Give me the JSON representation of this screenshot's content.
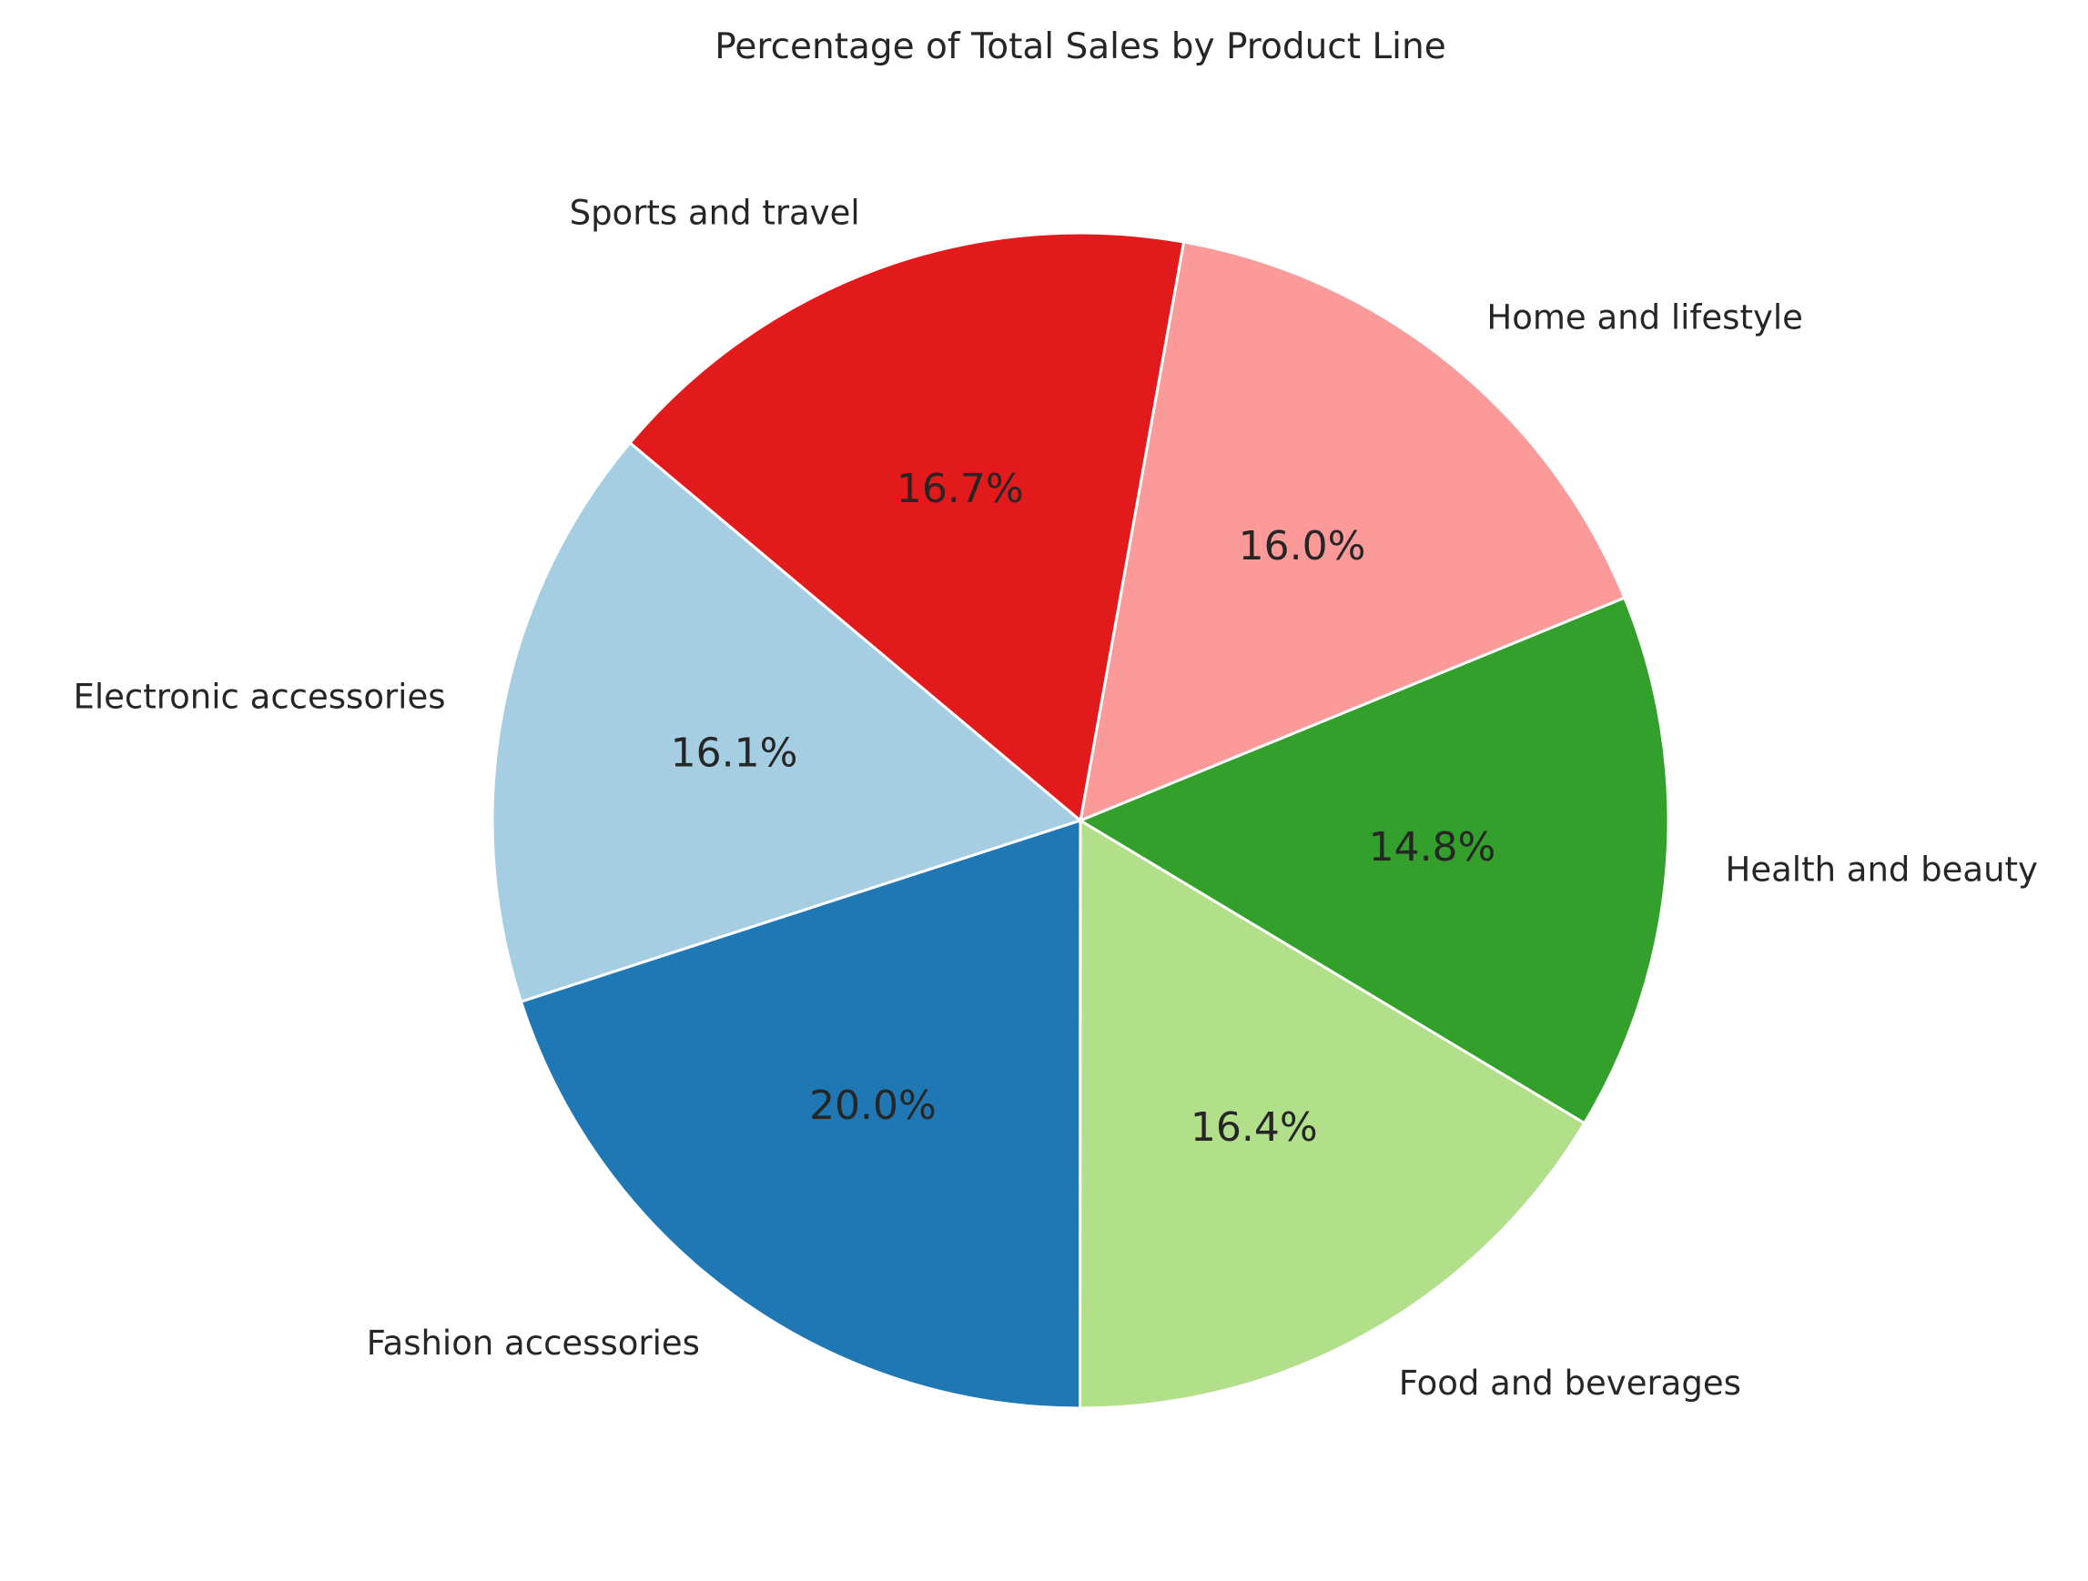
{
  "chart_data": {
    "type": "pie",
    "title": "Percentage of Total Sales by Product Line",
    "slices": [
      {
        "label": "Electronic accessories",
        "value": 16.1,
        "display": "16.1%",
        "color": "#a6cee3"
      },
      {
        "label": "Fashion accessories",
        "value": 20.0,
        "display": "20.0%",
        "color": "#1f78b4"
      },
      {
        "label": "Food and beverages",
        "value": 16.4,
        "display": "16.4%",
        "color": "#b2df8a"
      },
      {
        "label": "Health and beauty",
        "value": 14.8,
        "display": "14.8%",
        "color": "#33a02c"
      },
      {
        "label": "Home and lifestyle",
        "value": 16.0,
        "display": "16.0%",
        "color": "#fb9a99"
      },
      {
        "label": "Sports and travel",
        "value": 16.7,
        "display": "16.7%",
        "color": "#e31a1c"
      }
    ],
    "start_angle_deg": 140,
    "direction": "counterclockwise",
    "edge_color": "#ffffff",
    "legend": "none"
  }
}
